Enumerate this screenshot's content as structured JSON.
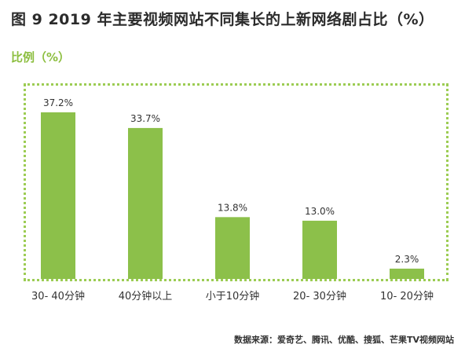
{
  "chart_data": {
    "type": "bar",
    "title": "图 9  2019 年主要视频网站不同集长的上新网络剧占比（%）",
    "ylabel": "比例（%）",
    "xlabel": "",
    "categories": [
      "30- 40分钟",
      "40分钟以上",
      "小于10分钟",
      "20- 30分钟",
      "10- 20分钟"
    ],
    "values": [
      37.2,
      33.7,
      13.8,
      13.0,
      2.3
    ],
    "value_labels": [
      "37.2%",
      "33.7%",
      "13.8%",
      "13.0%",
      "2.3%"
    ],
    "ylim": [
      0,
      40
    ],
    "bar_color": "#8cc04a",
    "frame_color": "#9ccc53"
  },
  "source": "数据来源：爱奇艺、腾讯、优酷、搜狐、芒果TV视频网站"
}
